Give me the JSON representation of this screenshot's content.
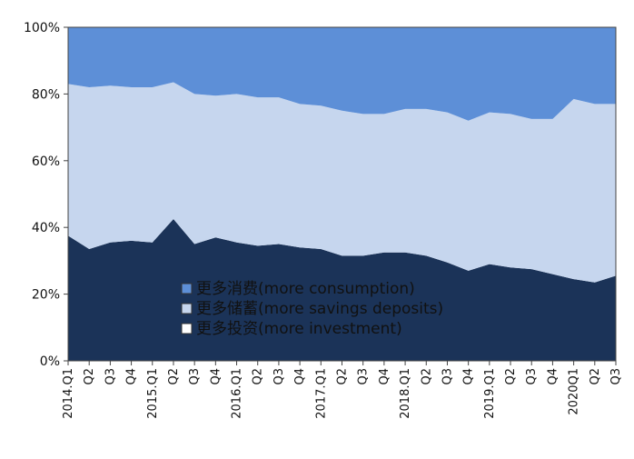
{
  "chart_data": {
    "type": "area",
    "stacked": true,
    "normalized": true,
    "ylim": [
      0,
      100
    ],
    "y_ticks": [
      "0%",
      "20%",
      "40%",
      "60%",
      "80%",
      "100%"
    ],
    "categories": [
      "2014.Q1",
      "Q2",
      "Q3",
      "Q4",
      "2015.Q1",
      "Q2",
      "Q3",
      "Q4",
      "2016.Q1",
      "Q2",
      "Q3",
      "Q4",
      "2017.Q1",
      "Q2",
      "Q3",
      "Q4",
      "2018.Q1",
      "Q2",
      "Q3",
      "Q4",
      "2019.Q1",
      "Q2",
      "Q3",
      "Q4",
      "2020Q1",
      "Q2",
      "Q3"
    ],
    "grid": false,
    "legend_position": "bottom-center-inside",
    "series": [
      {
        "name": "更多投资(more investment)",
        "color": "#1b3358",
        "values": [
          37.5,
          33.5,
          35.5,
          36,
          35.5,
          42.5,
          35,
          37,
          35.5,
          34.5,
          35,
          34,
          33.5,
          31.5,
          31.5,
          32.5,
          32.5,
          31.5,
          29.5,
          27,
          29,
          28,
          27.5,
          26,
          24.5,
          23.5,
          25.5
        ]
      },
      {
        "name": "更多储蓄(more savings deposits)",
        "color": "#c6d6ee",
        "values": [
          45.5,
          48.5,
          47,
          46,
          46.5,
          41,
          45,
          42.5,
          44.5,
          44.5,
          44,
          43,
          43,
          43.5,
          42.5,
          41.5,
          43,
          44,
          45,
          45,
          45.5,
          46,
          45,
          46.5,
          54,
          53.5,
          51.5
        ]
      },
      {
        "name": "更多消费(more consumption)",
        "color": "#5d8fd7",
        "values": [
          17,
          18,
          17.5,
          18,
          18,
          16.5,
          20,
          20.5,
          20,
          21,
          21,
          23,
          23.5,
          25,
          26,
          26,
          24.5,
          24.5,
          25.5,
          28,
          25.5,
          26,
          27.5,
          27.5,
          21.5,
          23,
          23
        ]
      }
    ],
    "legend": [
      {
        "label": "更多消费(more consumption)",
        "swatch": "#5d8fd7"
      },
      {
        "label": "更多储蓄(more savings deposits)",
        "swatch": "#c6d6ee"
      },
      {
        "label": "更多投资(more investment)",
        "swatch": "#ffffff"
      }
    ]
  }
}
